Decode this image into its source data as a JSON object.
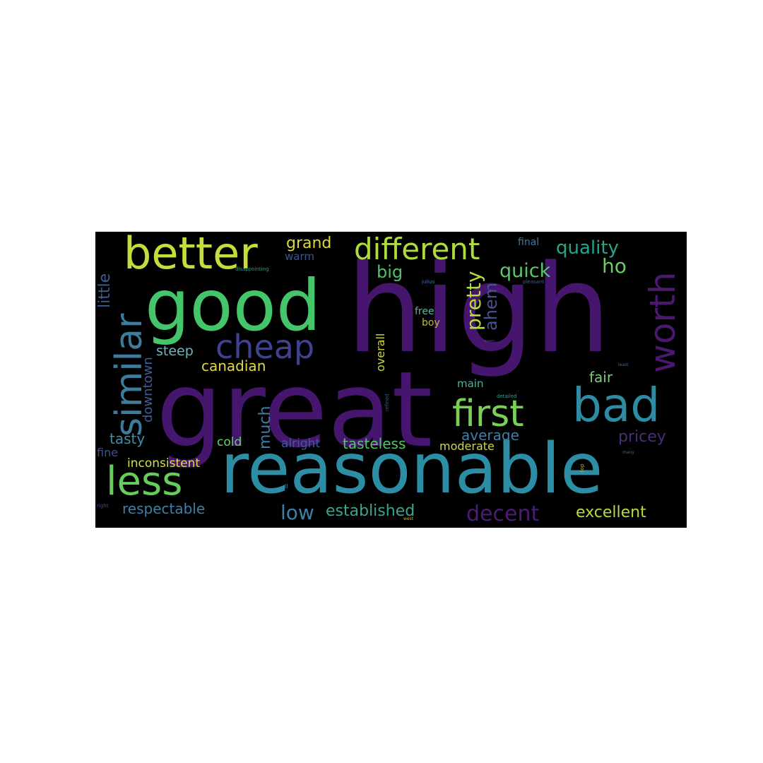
{
  "words": {
    "high": {
      "text": "high",
      "color": "#46166e"
    },
    "great": {
      "text": "great",
      "color": "#46166e"
    },
    "reasonable": {
      "text": "reasonable",
      "color": "#2c8da4"
    },
    "good": {
      "text": "good",
      "color": "#45c56a"
    },
    "better": {
      "text": "better",
      "color": "#c6dc3a"
    },
    "bad": {
      "text": "bad",
      "color": "#2e8ba4"
    },
    "first": {
      "text": "first",
      "color": "#78d155"
    },
    "less": {
      "text": "less",
      "color": "#66cd5c"
    },
    "different": {
      "text": "different",
      "color": "#aedb3f"
    },
    "cheap": {
      "text": "cheap",
      "color": "#40418f"
    },
    "similar": {
      "text": "similar",
      "color": "#3d7c9c"
    },
    "worth": {
      "text": "worth",
      "color": "#4a186d"
    },
    "quality": {
      "text": "quality",
      "color": "#22a68a"
    },
    "quick": {
      "text": "quick",
      "color": "#5ac96b"
    },
    "grand": {
      "text": "grand",
      "color": "#dfd53c"
    },
    "big": {
      "text": "big",
      "color": "#4ac36a"
    },
    "pretty": {
      "text": "pretty",
      "color": "#b6dc3c"
    },
    "ahem": {
      "text": "ahem",
      "color": "#46528e"
    },
    "ho": {
      "text": "ho",
      "color": "#6dcc61"
    },
    "little": {
      "text": "little",
      "color": "#3a5d8c"
    },
    "warm": {
      "text": "warm",
      "color": "#3b588c"
    },
    "final": {
      "text": "final",
      "color": "#3f7a99"
    },
    "disappointing": {
      "text": "disappointing",
      "color": "#2a9a83"
    },
    "julius": {
      "text": "julius",
      "color": "#4e6ea1"
    },
    "pleasant": {
      "text": "pleasant",
      "color": "#3b5f93"
    },
    "free": {
      "text": "free",
      "color": "#5ab9a0"
    },
    "boy": {
      "text": "boy",
      "color": "#c0b83e"
    },
    "overall": {
      "text": "overall",
      "color": "#c9d43f"
    },
    "steep": {
      "text": "steep",
      "color": "#6db7bb"
    },
    "canadian": {
      "text": "canadian",
      "color": "#dfd94c"
    },
    "downtown": {
      "text": "downtown",
      "color": "#3f5f95"
    },
    "queen": {
      "text": "queen",
      "color": "#3d4b87"
    },
    "fair": {
      "text": "fair",
      "color": "#7cc97e"
    },
    "main": {
      "text": "main",
      "color": "#4fb1a0"
    },
    "least": {
      "text": "least",
      "color": "#3f6b9a"
    },
    "detailed": {
      "text": "detailed",
      "color": "#29a88a"
    },
    "much": {
      "text": "much",
      "color": "#3b7ea5"
    },
    "average": {
      "text": "average",
      "color": "#3d7fa5"
    },
    "pricey": {
      "text": "pricey",
      "color": "#4a2c7a"
    },
    "tasty": {
      "text": "tasty",
      "color": "#3d8fa5"
    },
    "cold": {
      "text": "cold",
      "color": "#69d06b"
    },
    "alright": {
      "text": "alright",
      "color": "#3f5e95"
    },
    "tasteless": {
      "text": "tasteless",
      "color": "#52c569"
    },
    "moderate": {
      "text": "moderate",
      "color": "#d4d547"
    },
    "fine": {
      "text": "fine",
      "color": "#3d4e8e"
    },
    "refined": {
      "text": "refined",
      "color": "#365b8a"
    },
    "many": {
      "text": "many",
      "color": "#45668f"
    },
    "inconsistent": {
      "text": "inconsistent",
      "color": "#dbdf46"
    },
    "ll": {
      "text": "ll",
      "color": "#4a85a7"
    },
    "top": {
      "text": "top",
      "color": "#c7b33a"
    },
    "respectable": {
      "text": "respectable",
      "color": "#3d7fa5"
    },
    "low": {
      "text": "low",
      "color": "#3d7fa5"
    },
    "established": {
      "text": "established",
      "color": "#3aa68f"
    },
    "decent": {
      "text": "decent",
      "color": "#4a1c74"
    },
    "excellent": {
      "text": "excellent",
      "color": "#b6dc3c"
    },
    "right": {
      "text": "right",
      "color": "#3f4d8c"
    },
    "west": {
      "text": "west",
      "color": "#c2ac3c"
    }
  }
}
